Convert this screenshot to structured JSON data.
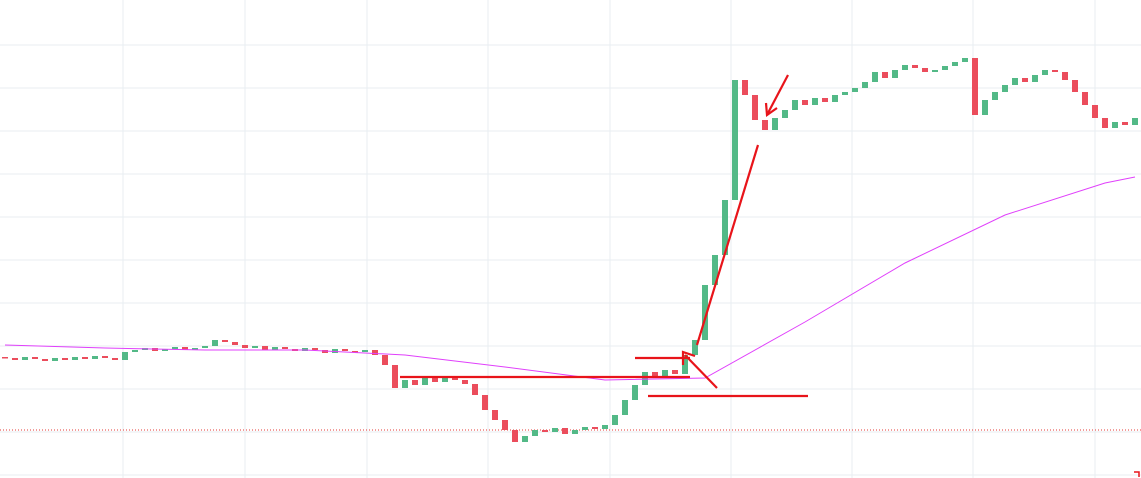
{
  "chart_data": {
    "type": "candlestick",
    "open": 121,
    "values": [
      120,
      118,
      121,
      119,
      117,
      120,
      118,
      121,
      119,
      122,
      120,
      118,
      126,
      128,
      130,
      127,
      129,
      131,
      128,
      130,
      132,
      138,
      136,
      133,
      130,
      132,
      128,
      131,
      129,
      127,
      130,
      128,
      125,
      129,
      127,
      126,
      128,
      123,
      113,
      90,
      98,
      93,
      100,
      96,
      102,
      98,
      94,
      83,
      68,
      58,
      48,
      36,
      42,
      48,
      46,
      50,
      44,
      48,
      51,
      49,
      53,
      63,
      78,
      93,
      106,
      102,
      108,
      104,
      123,
      138,
      193,
      223,
      278,
      398,
      383,
      358,
      348,
      360,
      368,
      378,
      373,
      380,
      376,
      383,
      386,
      390,
      396,
      406,
      400,
      408,
      413,
      410,
      406,
      408,
      412,
      416,
      420,
      363,
      378,
      386,
      393,
      400,
      396,
      403,
      408,
      406,
      398,
      386,
      373,
      360,
      350,
      356,
      353,
      360
    ],
    "up_color": "#53b987",
    "down_color": "#eb4d5c",
    "moving_average": {
      "x": [
        0,
        10,
        20,
        30,
        40,
        50,
        60,
        70,
        80,
        90,
        100,
        110,
        113
      ],
      "values": [
        133,
        130,
        128,
        128,
        123,
        111,
        98,
        100,
        156,
        215,
        263,
        295,
        301
      ],
      "color": "#e040fb"
    },
    "hline": {
      "value": 48,
      "color": "#e53935"
    },
    "xlim": [
      -0.5,
      113.6
    ],
    "ylim": [
      0,
      478
    ],
    "xticks": [
      11.8,
      24,
      36.2,
      48.3,
      60.5,
      72.6,
      84.7,
      96.8,
      109
    ],
    "yticks": [
      433,
      390,
      347,
      304,
      261,
      218,
      175,
      132,
      89,
      46,
      3
    ],
    "grid": true
  }
}
